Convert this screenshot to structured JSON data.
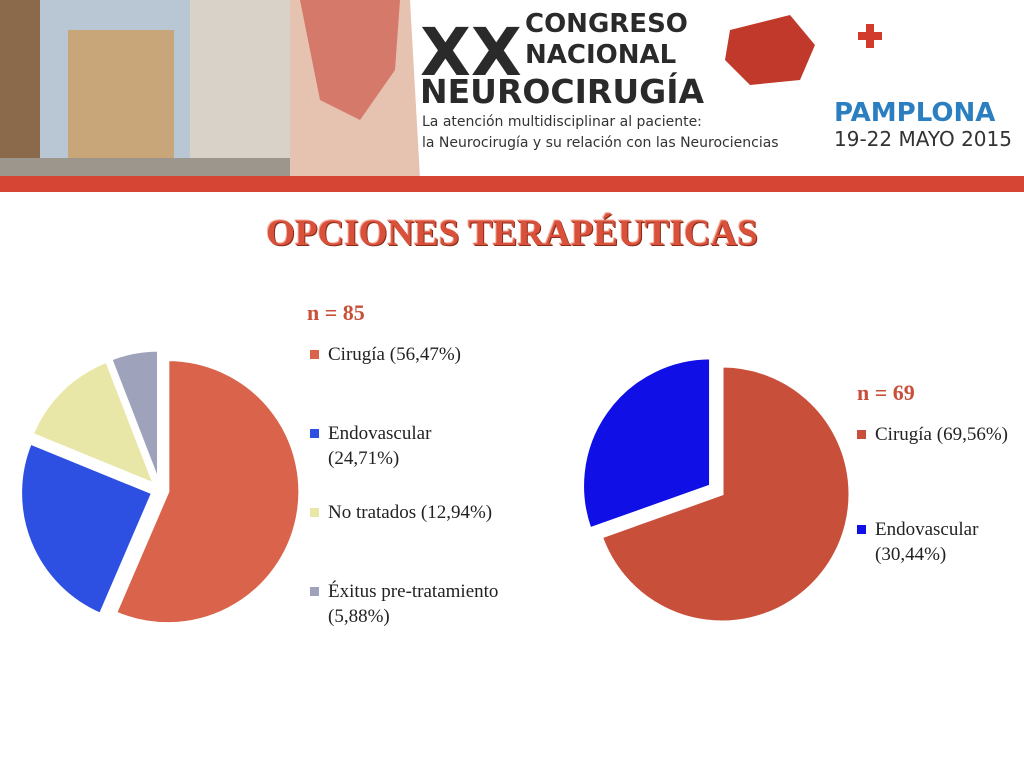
{
  "header": {
    "xx": "XX",
    "line1": "CONGRESO",
    "line2": "NACIONAL",
    "line3": "NEUROCIRUGÍA",
    "tagline1": "La atención multidisciplinar al paciente:",
    "tagline2": "la Neurocirugía y su relación con las Neurociencias",
    "city": "PAMPLONA",
    "dates": "19-22 MAYO 2015"
  },
  "title": "OPCIONES TERAPÉUTICAS",
  "chart_data": [
    {
      "type": "pie",
      "subtitle": "n = 85",
      "categories": [
        "Cirugía (56,47%)",
        "Endovascular (24,71%)",
        "No tratados (12,94%)",
        "Éxitus pre-tratamiento (5,88%)"
      ],
      "values": [
        56.47,
        24.71,
        12.94,
        5.88
      ],
      "colors": [
        "#d9634b",
        "#2d4fe2",
        "#e9e7a8",
        "#9ea2bb"
      ]
    },
    {
      "type": "pie",
      "subtitle": "n = 69",
      "categories": [
        "Cirugía (69,56%)",
        "Endovascular (30,44%)"
      ],
      "values": [
        69.56,
        30.44
      ],
      "colors": [
        "#c8503a",
        "#0f0fe6"
      ]
    }
  ]
}
